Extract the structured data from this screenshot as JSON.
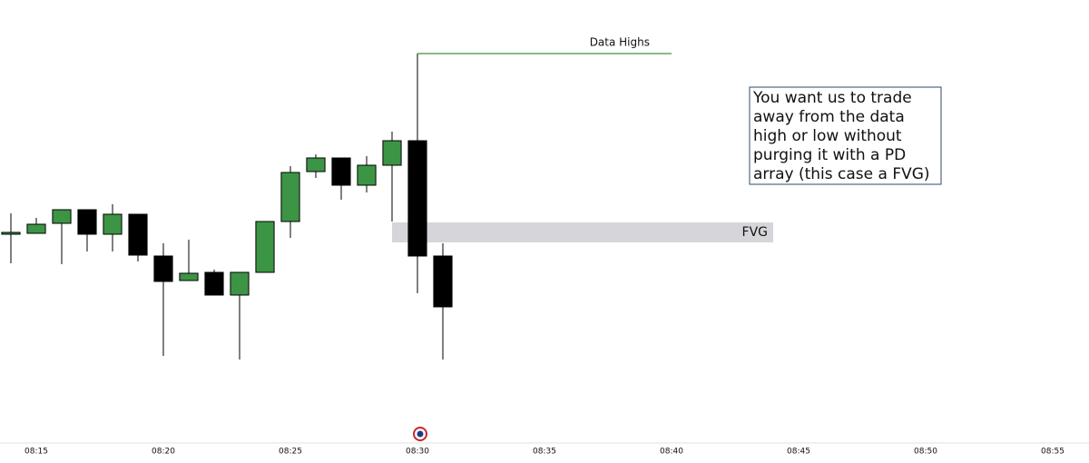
{
  "chart_data": {
    "type": "candlestick",
    "x": [
      "08:14",
      "08:15",
      "08:16",
      "08:17",
      "08:18",
      "08:19",
      "08:20",
      "08:21",
      "08:22",
      "08:23",
      "08:24",
      "08:25",
      "08:26",
      "08:27",
      "08:28",
      "08:29",
      "08:30",
      "08:31"
    ],
    "open": [
      244,
      243,
      254,
      269,
      242,
      264,
      218,
      191,
      200,
      175,
      200,
      256,
      311,
      326,
      296,
      318,
      345,
      218
    ],
    "high": [
      265,
      260,
      269,
      269,
      275,
      264,
      232,
      236,
      203,
      200,
      256,
      317,
      330,
      326,
      328,
      355,
      441,
      232
    ],
    "low": [
      210,
      243,
      209,
      223,
      223,
      212,
      108,
      191,
      175,
      104,
      200,
      238,
      304,
      280,
      288,
      256,
      177,
      104
    ],
    "close": [
      244,
      253,
      269,
      242,
      264,
      219,
      190,
      199,
      175,
      200,
      256,
      310,
      326,
      296,
      318,
      345,
      218,
      162
    ],
    "up_color": "#3c9445",
    "down_color": "#000000",
    "ylim": [
      20,
      500
    ],
    "xlim": [
      "08:14",
      "08:56"
    ],
    "xticks": [
      "08:15",
      "08:20",
      "08:25",
      "08:30",
      "08:35",
      "08:40",
      "08:45",
      "08:50",
      "08:55"
    ],
    "level_line": {
      "text": "Data Highs",
      "value": 441,
      "x_from": "08:30",
      "x_to": "08:40",
      "color": "#3c9445"
    },
    "zone": {
      "text": "FVG",
      "top": 255,
      "bottom": 233,
      "x_from": "08:29",
      "x_to": "08:44",
      "color": "#d6d6da"
    },
    "note": [
      "You want us to trade",
      "away from the data",
      "high or low without",
      "purging it with a PD",
      "array (this case a FVG)"
    ]
  }
}
